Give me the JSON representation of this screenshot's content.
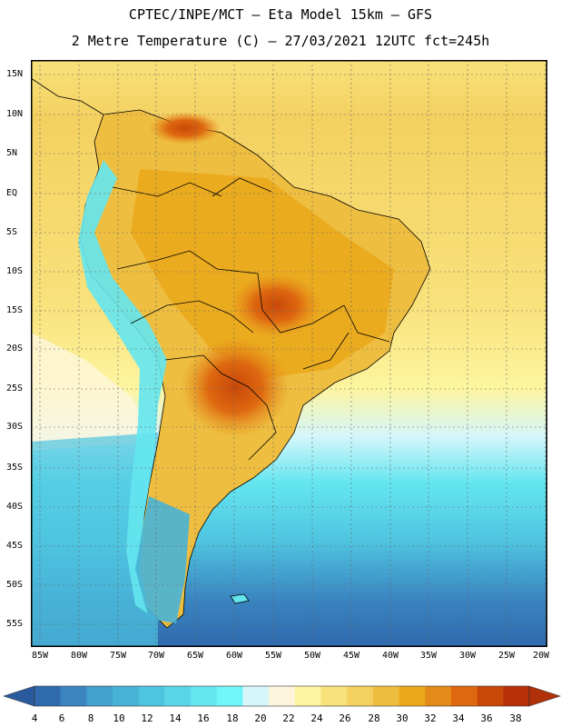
{
  "header": {
    "title_line1": "CPTEC/INPE/MCT –  Eta Model 15km – GFS",
    "title_line2": "2 Metre Temperature (C) – 27/03/2021 12UTC fct=245h"
  },
  "map": {
    "latitude_labels": [
      "15N",
      "10N",
      "5N",
      "EQ",
      "5S",
      "10S",
      "15S",
      "20S",
      "25S",
      "30S",
      "35S",
      "40S",
      "45S",
      "50S",
      "55S"
    ],
    "longitude_labels": [
      "85W",
      "80W",
      "75W",
      "70W",
      "65W",
      "60W",
      "55W",
      "50W",
      "45W",
      "40W",
      "35W",
      "30W",
      "25W",
      "20W"
    ]
  },
  "colorbar": {
    "labels": [
      "4",
      "6",
      "8",
      "10",
      "12",
      "14",
      "16",
      "18",
      "20",
      "22",
      "24",
      "26",
      "28",
      "30",
      "32",
      "34",
      "36",
      "38"
    ],
    "colors": [
      "#2f6aae",
      "#3a84c0",
      "#44a0cc",
      "#48b2d6",
      "#4fc4e0",
      "#5ad6e8",
      "#64e6f0",
      "#70f6f8",
      "#d6f6fa",
      "#fdf6dc",
      "#fdf5a0",
      "#f8e27c",
      "#f4d060",
      "#eebe40",
      "#eaa81a",
      "#e48a18",
      "#de6810",
      "#c84808",
      "#b83008"
    ],
    "low_color": "#2a5a9e",
    "high_color": "#b03008"
  }
}
